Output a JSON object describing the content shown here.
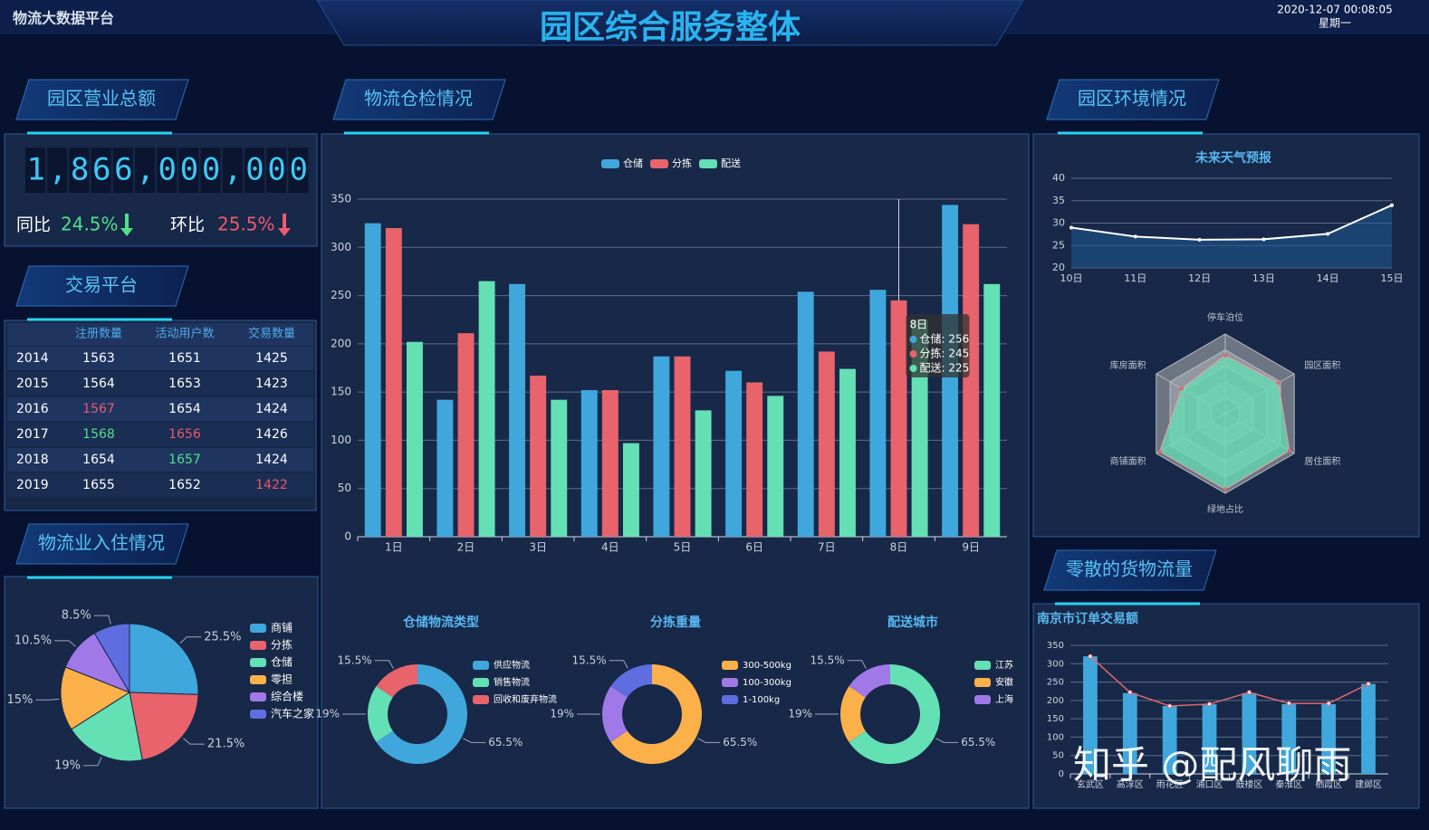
{
  "header": {
    "platform": "物流大数据平台",
    "title": "园区综合服务整体",
    "datetime": "2020-12-07 00:08:05",
    "weekday": "星期一"
  },
  "panels": {
    "revenue": "园区营业总额",
    "trading": "交易平台",
    "settlement": "物流业入住情况",
    "inspection": "物流仓检情况",
    "environment": "园区环境情况",
    "cargo": "零散的货物流量"
  },
  "revenue": {
    "total": "1,866,000,000",
    "yoy_label": "同比",
    "yoy": "24.5%",
    "mom_label": "环比",
    "mom": "25.5%"
  },
  "table": {
    "columns": [
      "注册数量",
      "活动用户数",
      "交易数量"
    ],
    "rows": [
      {
        "cells": [
          2014,
          1563,
          1651,
          1425
        ],
        "colors": [
          null,
          null,
          null,
          null
        ]
      },
      {
        "cells": [
          2015,
          1564,
          1653,
          1423
        ],
        "colors": [
          null,
          null,
          null,
          null
        ]
      },
      {
        "cells": [
          2016,
          1567,
          1654,
          1424
        ],
        "colors": [
          null,
          "#e8596e",
          null,
          null
        ]
      },
      {
        "cells": [
          2017,
          1568,
          1656,
          1426
        ],
        "colors": [
          null,
          "#4ee08a",
          "#e8596e",
          null
        ]
      },
      {
        "cells": [
          2018,
          1654,
          1657,
          1424
        ],
        "colors": [
          null,
          null,
          "#4ee08a",
          null
        ]
      },
      {
        "cells": [
          2019,
          1655,
          1652,
          1422
        ],
        "colors": [
          null,
          null,
          null,
          "#e8596e"
        ]
      }
    ]
  },
  "chart_data": [
    {
      "type": "pie",
      "legend": "right",
      "categories": [
        "商铺",
        "分拣",
        "仓储",
        "零担",
        "综合楼",
        "汽车之家"
      ],
      "values": [
        25.5,
        21.5,
        19,
        15,
        10.5,
        8.5
      ],
      "value_labels": [
        "25.5%",
        "21.5%",
        "19%",
        "15%",
        "10.5%",
        "8.5%"
      ],
      "colors": [
        "#3fa7dc",
        "#e8636b",
        "#64e0b5",
        "#fbb04a",
        "#a178e8",
        "#5e6ee0"
      ]
    },
    {
      "type": "bar",
      "grid": true,
      "legend": "top",
      "categories": [
        "1日",
        "2日",
        "3日",
        "4日",
        "5日",
        "6日",
        "7日",
        "8日",
        "9日"
      ],
      "series": [
        {
          "name": "仓储",
          "color": "#3fa7dc",
          "values": [
            325,
            142,
            262,
            152,
            187,
            172,
            254,
            256,
            344
          ]
        },
        {
          "name": "分拣",
          "color": "#e8636b",
          "values": [
            320,
            211,
            167,
            152,
            187,
            160,
            192,
            245,
            324
          ]
        },
        {
          "name": "配送",
          "color": "#64e0b5",
          "values": [
            202,
            265,
            142,
            97,
            131,
            146,
            174,
            225,
            262
          ]
        }
      ],
      "ylim": [
        0,
        350
      ],
      "yticks": [
        0,
        50,
        100,
        150,
        200,
        250,
        300,
        350
      ],
      "tooltip": {
        "title": "8日",
        "lines": [
          "仓储: 256",
          "分拣: 245",
          "配送: 225"
        ]
      }
    },
    {
      "type": "pie",
      "donut": true,
      "legend": "right",
      "title": "仓储物流类型",
      "categories": [
        "供应物流",
        "销售物流",
        "回收和废弃物流"
      ],
      "values": [
        65.5,
        19,
        15.5
      ],
      "value_labels": [
        "65.5%",
        "19%",
        "15.5%"
      ],
      "colors": [
        "#3fa7dc",
        "#64e0b5",
        "#e8636b"
      ]
    },
    {
      "type": "pie",
      "donut": true,
      "legend": "right",
      "title": "分拣重量",
      "categories": [
        "300-500kg",
        "100-300kg",
        "1-100kg"
      ],
      "values": [
        65.5,
        19,
        15.5
      ],
      "value_labels": [
        "65.5%",
        "19%",
        "15.5%"
      ],
      "colors": [
        "#fbb04a",
        "#a178e8",
        "#5e6ee0"
      ]
    },
    {
      "type": "pie",
      "donut": true,
      "legend": "right",
      "title": "配送城市",
      "categories": [
        "江苏",
        "安徽",
        "上海"
      ],
      "values": [
        65.5,
        19,
        15.5
      ],
      "value_labels": [
        "65.5%",
        "19%",
        "15.5%"
      ],
      "colors": [
        "#64e0b5",
        "#fbb04a",
        "#a178e8"
      ]
    },
    {
      "type": "line",
      "grid": true,
      "title": "未来天气预报",
      "categories": [
        "10日",
        "11日",
        "12日",
        "13日",
        "14日",
        "15日"
      ],
      "values": [
        29,
        27,
        26.3,
        26.4,
        27.6,
        34
      ],
      "color": "#ffffff",
      "area_color": "#1d5a94",
      "ylim": [
        20,
        40
      ],
      "yticks": [
        20,
        25,
        30,
        35,
        40
      ]
    },
    {
      "type": "radar",
      "indicators": [
        "停车泊位",
        "园区面积",
        "居住面积",
        "绿地占比",
        "商铺面积",
        "库房面积"
      ],
      "values": [
        73,
        77,
        93,
        95,
        95,
        63
      ],
      "rlim": [
        0,
        100
      ],
      "color": "#64e0b5"
    },
    {
      "type": "bar",
      "grid": true,
      "title": "南京市订单交易额",
      "categories": [
        "玄武区",
        "高淳区",
        "雨花区",
        "浦口区",
        "鼓楼区",
        "秦淮区",
        "栖霞区",
        "建邺区"
      ],
      "series": [
        {
          "type": "bar",
          "color": "#3fa7dc",
          "values": [
            320,
            220,
            185,
            190,
            220,
            190,
            190,
            245
          ]
        },
        {
          "type": "line",
          "color": "#e0686e",
          "values": [
            320,
            222,
            185,
            190,
            222,
            192,
            192,
            245
          ]
        }
      ],
      "ylim": [
        0,
        350
      ],
      "yticks": [
        0,
        50,
        100,
        150,
        200,
        250,
        300,
        350
      ]
    }
  ],
  "watermark": "知乎 @配风聊雨"
}
